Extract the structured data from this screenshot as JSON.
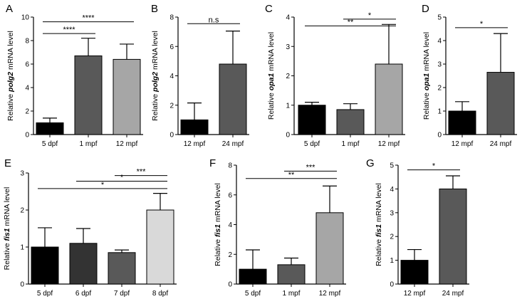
{
  "colors": {
    "black": "#000000",
    "dark": "#595959",
    "mid": "#a6a6a6",
    "darker": "#333333",
    "light": "#d9d9d9"
  },
  "chart_data": [
    {
      "type": "bar",
      "panel": "A",
      "ylabel_pre": "Relative ",
      "ylabel_gene": "polg2",
      "ylabel_post": " mRNA level",
      "ylim": [
        0,
        10
      ],
      "yticks": [
        0,
        2,
        4,
        6,
        8,
        10
      ],
      "categories": [
        "5 dpf",
        "1 mpf",
        "12 mpf"
      ],
      "values": [
        1.0,
        6.7,
        6.4
      ],
      "errors": [
        0.4,
        1.5,
        1.3
      ],
      "colors": [
        "#000000",
        "#595959",
        "#a6a6a6"
      ],
      "significance": [
        {
          "from": 0,
          "to": 1,
          "label": "****",
          "y": 8.6
        },
        {
          "from": 0,
          "to": 2,
          "label": "****",
          "y": 9.6
        }
      ]
    },
    {
      "type": "bar",
      "panel": "B",
      "ylabel_pre": "Relative ",
      "ylabel_gene": "polg2",
      "ylabel_post": " mRNA level",
      "ylim": [
        0,
        8
      ],
      "yticks": [
        0,
        2,
        4,
        6,
        8
      ],
      "categories": [
        "12 mpf",
        "24 mpf"
      ],
      "values": [
        1.0,
        4.8
      ],
      "errors": [
        1.15,
        2.25
      ],
      "colors": [
        "#000000",
        "#595959"
      ],
      "significance": [
        {
          "from": 0,
          "to": 1,
          "label": "n.s",
          "y": 7.55
        }
      ]
    },
    {
      "type": "bar",
      "panel": "C",
      "ylabel_pre": "Relative ",
      "ylabel_gene": "opa1",
      "ylabel_post": " mRNA level",
      "ylim": [
        0,
        4
      ],
      "yticks": [
        0,
        1,
        2,
        3,
        4
      ],
      "categories": [
        "5 dpf",
        "1 mpf",
        "12 mpf"
      ],
      "values": [
        1.0,
        0.85,
        2.4
      ],
      "errors": [
        0.1,
        0.2,
        1.35
      ],
      "colors": [
        "#000000",
        "#595959",
        "#a6a6a6"
      ],
      "significance": [
        {
          "from": 0,
          "to": 2,
          "label": "**",
          "y": 3.7
        },
        {
          "from": 1,
          "to": 2,
          "label": "*",
          "y": 3.93
        }
      ]
    },
    {
      "type": "bar",
      "panel": "D",
      "ylabel_pre": "Relative ",
      "ylabel_gene": "opa1",
      "ylabel_post": " mRNA level",
      "ylim": [
        0,
        5
      ],
      "yticks": [
        0,
        1,
        2,
        3,
        4,
        5
      ],
      "categories": [
        "12 mpf",
        "24 mpf"
      ],
      "values": [
        1.0,
        2.65
      ],
      "errors": [
        0.4,
        1.65
      ],
      "colors": [
        "#000000",
        "#595959"
      ],
      "significance": [
        {
          "from": 0,
          "to": 1,
          "label": "*",
          "y": 4.55
        }
      ]
    },
    {
      "type": "bar",
      "panel": "E",
      "ylabel_pre": "Relative ",
      "ylabel_gene": "fis1",
      "ylabel_post": " mRNA level",
      "ylim": [
        0,
        3
      ],
      "yticks": [
        0,
        1,
        2,
        3
      ],
      "categories": [
        "5 dpf",
        "6 dpf",
        "7 dpf",
        "8 dpf"
      ],
      "values": [
        1.0,
        1.1,
        0.85,
        2.0
      ],
      "errors": [
        0.52,
        0.4,
        0.07,
        0.45
      ],
      "colors": [
        "#000000",
        "#333333",
        "#595959",
        "#d9d9d9"
      ],
      "significance": [
        {
          "from": 0,
          "to": 3,
          "label": "*",
          "y": 2.58
        },
        {
          "from": 1,
          "to": 3,
          "label": "*",
          "y": 2.78
        },
        {
          "from": 2,
          "to": 3,
          "label": "***",
          "y": 2.93
        }
      ]
    },
    {
      "type": "bar",
      "panel": "F",
      "ylabel_pre": "Relative ",
      "ylabel_gene": "fis1",
      "ylabel_post": " mRNA level",
      "ylim": [
        0,
        8
      ],
      "yticks": [
        0,
        2,
        4,
        6,
        8
      ],
      "categories": [
        "5 dpf",
        "1 mpf",
        "12 mpf"
      ],
      "values": [
        1.0,
        1.3,
        4.8
      ],
      "errors": [
        1.3,
        0.45,
        1.8
      ],
      "colors": [
        "#000000",
        "#595959",
        "#a6a6a6"
      ],
      "significance": [
        {
          "from": 0,
          "to": 2,
          "label": "**",
          "y": 7.1
        },
        {
          "from": 1,
          "to": 2,
          "label": "***",
          "y": 7.6
        }
      ]
    },
    {
      "type": "bar",
      "panel": "G",
      "ylabel_pre": "Relative ",
      "ylabel_gene": "fis1",
      "ylabel_post": " mRNA level",
      "ylim": [
        0,
        5
      ],
      "yticks": [
        0,
        1,
        2,
        3,
        4,
        5
      ],
      "categories": [
        "12 mpf",
        "24 mpf"
      ],
      "values": [
        1.0,
        4.0
      ],
      "errors": [
        0.45,
        0.55
      ],
      "colors": [
        "#000000",
        "#595959"
      ],
      "significance": [
        {
          "from": 0,
          "to": 1,
          "label": "*",
          "y": 4.8
        }
      ]
    }
  ]
}
